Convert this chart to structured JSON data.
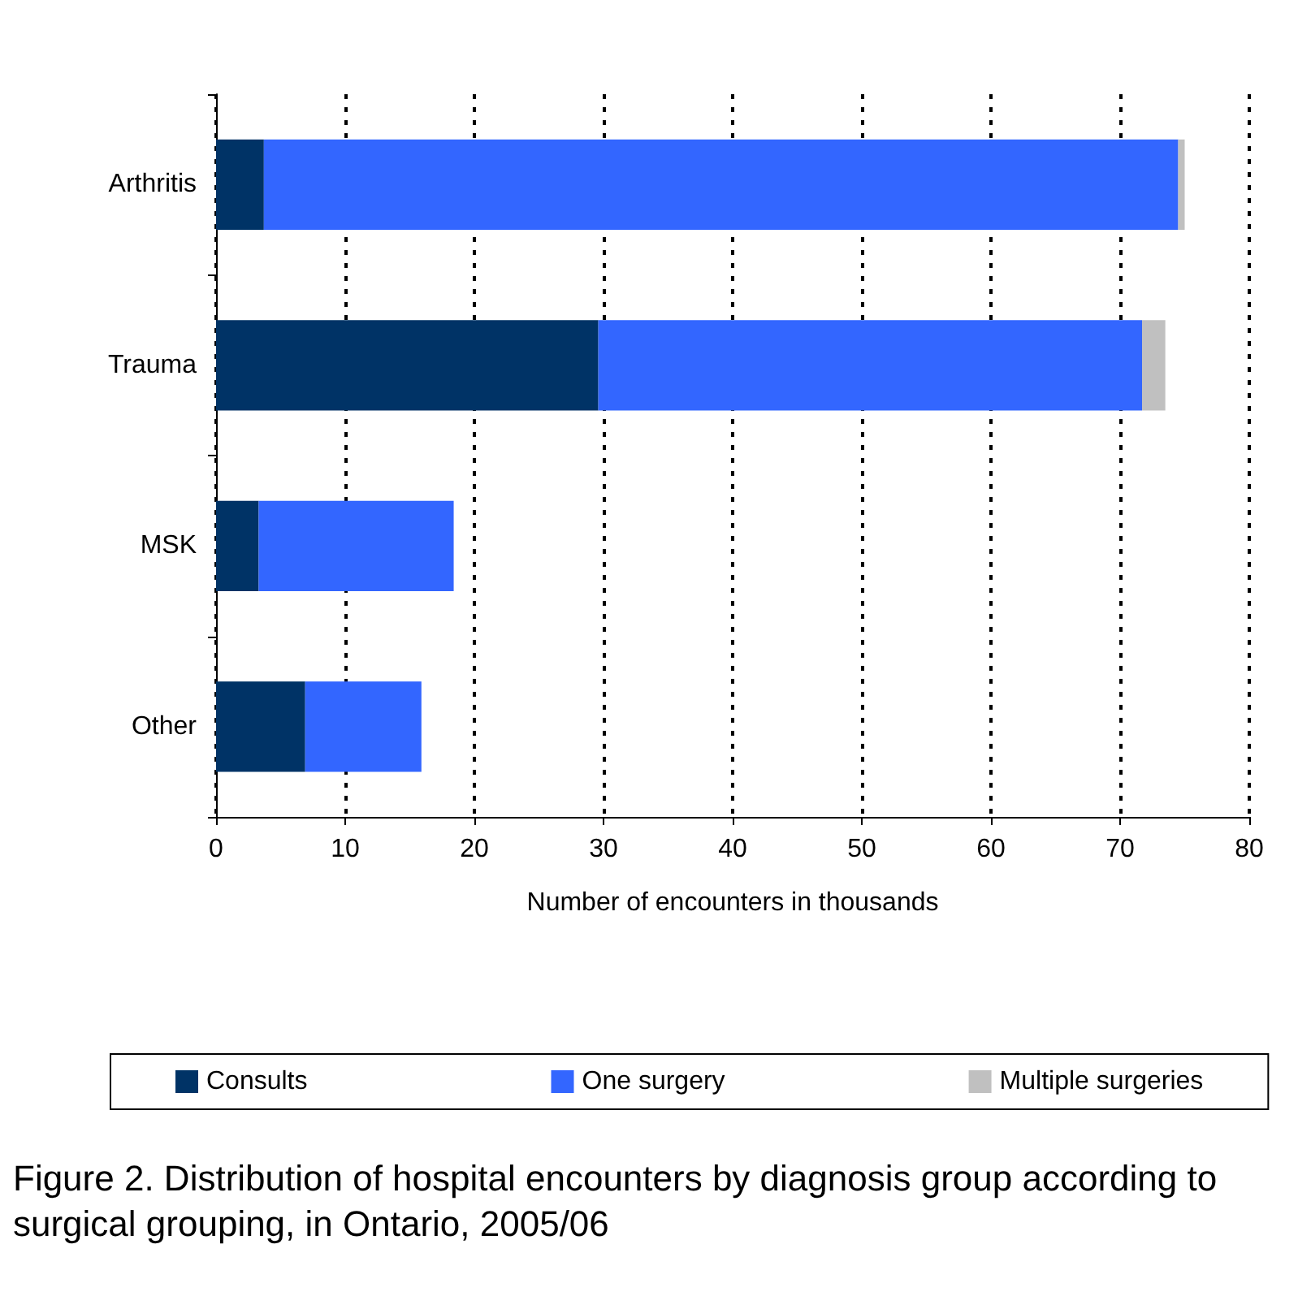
{
  "chart_data": {
    "type": "bar",
    "orientation": "horizontal",
    "stacked": true,
    "title": "Figure 2. Distribution of hospital encounters by diagnosis group according to surgical grouping, in Ontario, 2005/06",
    "xlabel": "Number of encounters in thousands",
    "categories": [
      "Arthritis",
      "Trauma",
      "MSK",
      "Other"
    ],
    "series": [
      {
        "name": "Consults",
        "color": "#003366",
        "values": [
          3.7,
          29.6,
          3.3,
          6.9
        ]
      },
      {
        "name": "One surgery",
        "color": "#3366ff",
        "values": [
          70.8,
          42.1,
          15.1,
          9.0
        ]
      },
      {
        "name": "Multiple surgeries",
        "color": "#c0c0c0",
        "values": [
          0.5,
          1.8,
          0,
          0
        ]
      }
    ],
    "xlim": [
      0,
      80
    ],
    "xticks": [
      0,
      10,
      20,
      30,
      40,
      50,
      60,
      70,
      80
    ],
    "grid": "x",
    "legend": "bottom"
  }
}
